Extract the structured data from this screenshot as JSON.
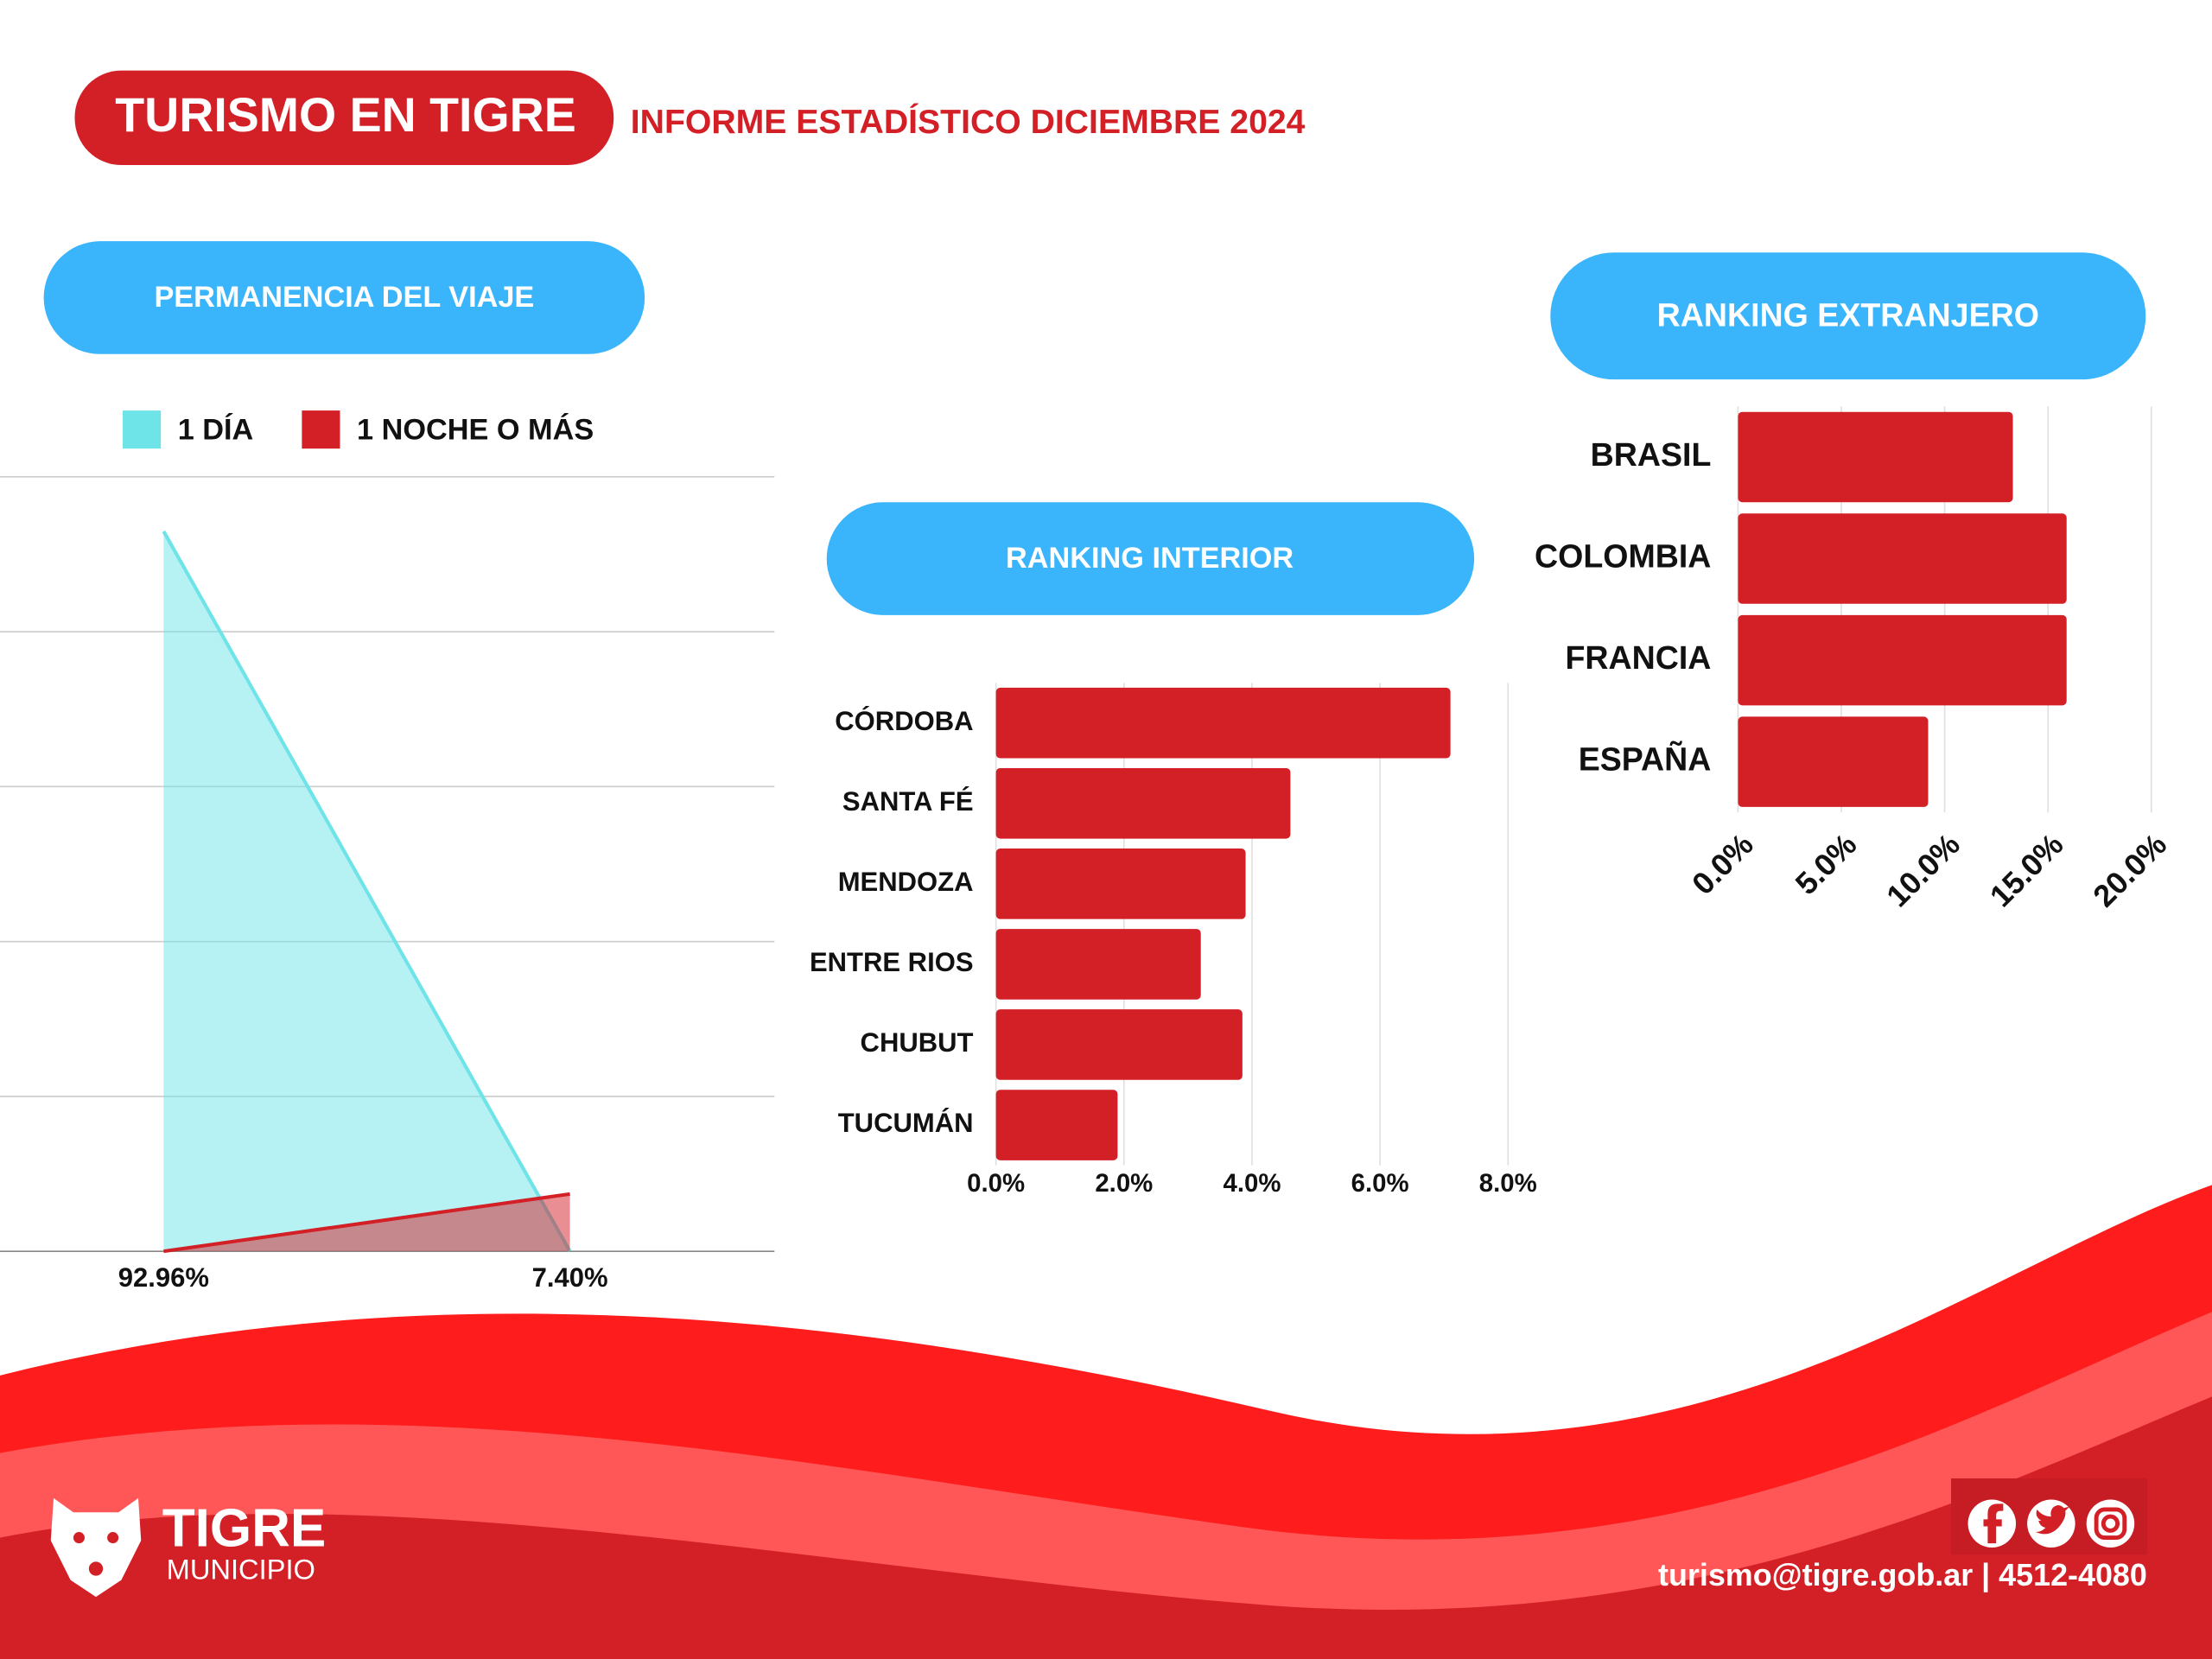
{
  "header": {
    "title": "TURISMO EN TIGRE",
    "subtitle": "INFORME ESTADÍSTICO DICIEMBRE 2024"
  },
  "chart_data": [
    {
      "type": "area",
      "title": "PERMANENCIA DEL VIAJE",
      "categories": [
        "92.96%",
        "7.40%"
      ],
      "series": [
        {
          "name": "1 DÍA",
          "color": "#6ee3e8",
          "values": [
            92.96,
            0
          ]
        },
        {
          "name": "1 NOCHE O MÁS",
          "color": "#d32027",
          "values": [
            0,
            7.4
          ]
        }
      ],
      "ylim": [
        0,
        100
      ],
      "yticks": [
        0,
        20,
        40,
        60,
        80,
        100
      ],
      "grid": true
    },
    {
      "type": "barh",
      "title": "RANKING INTERIOR",
      "categories": [
        "CÓRDOBA",
        "SANTA FÉ",
        "MENDOZA",
        "ENTRE RIOS",
        "CHUBUT",
        "TUCUMÁN"
      ],
      "values": [
        7.1,
        4.6,
        3.9,
        3.2,
        3.85,
        1.9
      ],
      "color": "#d32027",
      "xlim": [
        0,
        8
      ],
      "xticks": [
        {
          "value": 0,
          "label": "0.0%"
        },
        {
          "value": 2,
          "label": "2.0%"
        },
        {
          "value": 4,
          "label": "4.0%"
        },
        {
          "value": 6,
          "label": "6.0%"
        },
        {
          "value": 8,
          "label": "8.0%"
        }
      ],
      "grid": true
    },
    {
      "type": "barh",
      "title": "RANKING EXTRANJERO",
      "categories": [
        "BRASIL",
        "COLOMBIA",
        "FRANCIA",
        "ESPAÑA"
      ],
      "values": [
        13.3,
        15.9,
        15.9,
        9.2
      ],
      "color": "#d32027",
      "xlim": [
        0,
        20
      ],
      "xticks": [
        {
          "value": 0,
          "label": "0.0%"
        },
        {
          "value": 5,
          "label": "5.0%"
        },
        {
          "value": 10,
          "label": "10.0%"
        },
        {
          "value": 15,
          "label": "15.0%"
        },
        {
          "value": 20,
          "label": "20.0%"
        }
      ],
      "grid": true,
      "rotate_ticks": true
    }
  ],
  "footer": {
    "brand": "TIGRE",
    "brand_sub": "MUNICIPIO",
    "contact": "turismo@tigre.gob.ar | 4512-4080"
  }
}
